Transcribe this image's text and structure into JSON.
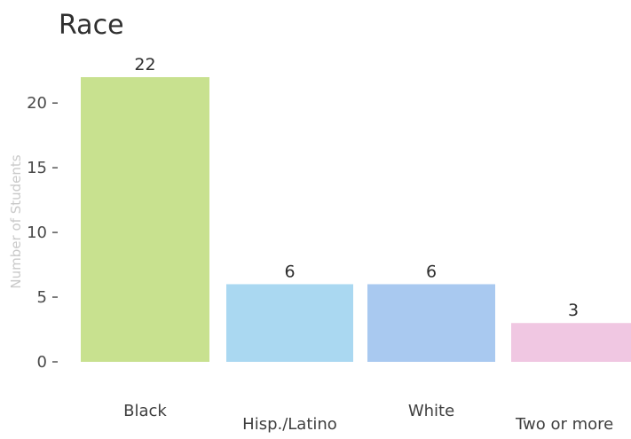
{
  "chart_data": {
    "type": "bar",
    "title": "Race",
    "xlabel": "",
    "ylabel": "Number of Students",
    "categories": [
      "Black",
      "Hisp./Latino",
      "White",
      "Two or more"
    ],
    "values": [
      22,
      6,
      6,
      3
    ],
    "colors": [
      "#c8e18f",
      "#aad8f1",
      "#a9c9f0",
      "#f0c7e2"
    ],
    "data_labels": [
      "22",
      "6",
      "6",
      "3"
    ],
    "ylim": [
      0,
      22
    ],
    "yticks": [
      0,
      5,
      10,
      15,
      20
    ],
    "ytick_labels": [
      "0",
      "5",
      "10",
      "15",
      "20"
    ],
    "grid": false,
    "legend": "none"
  }
}
